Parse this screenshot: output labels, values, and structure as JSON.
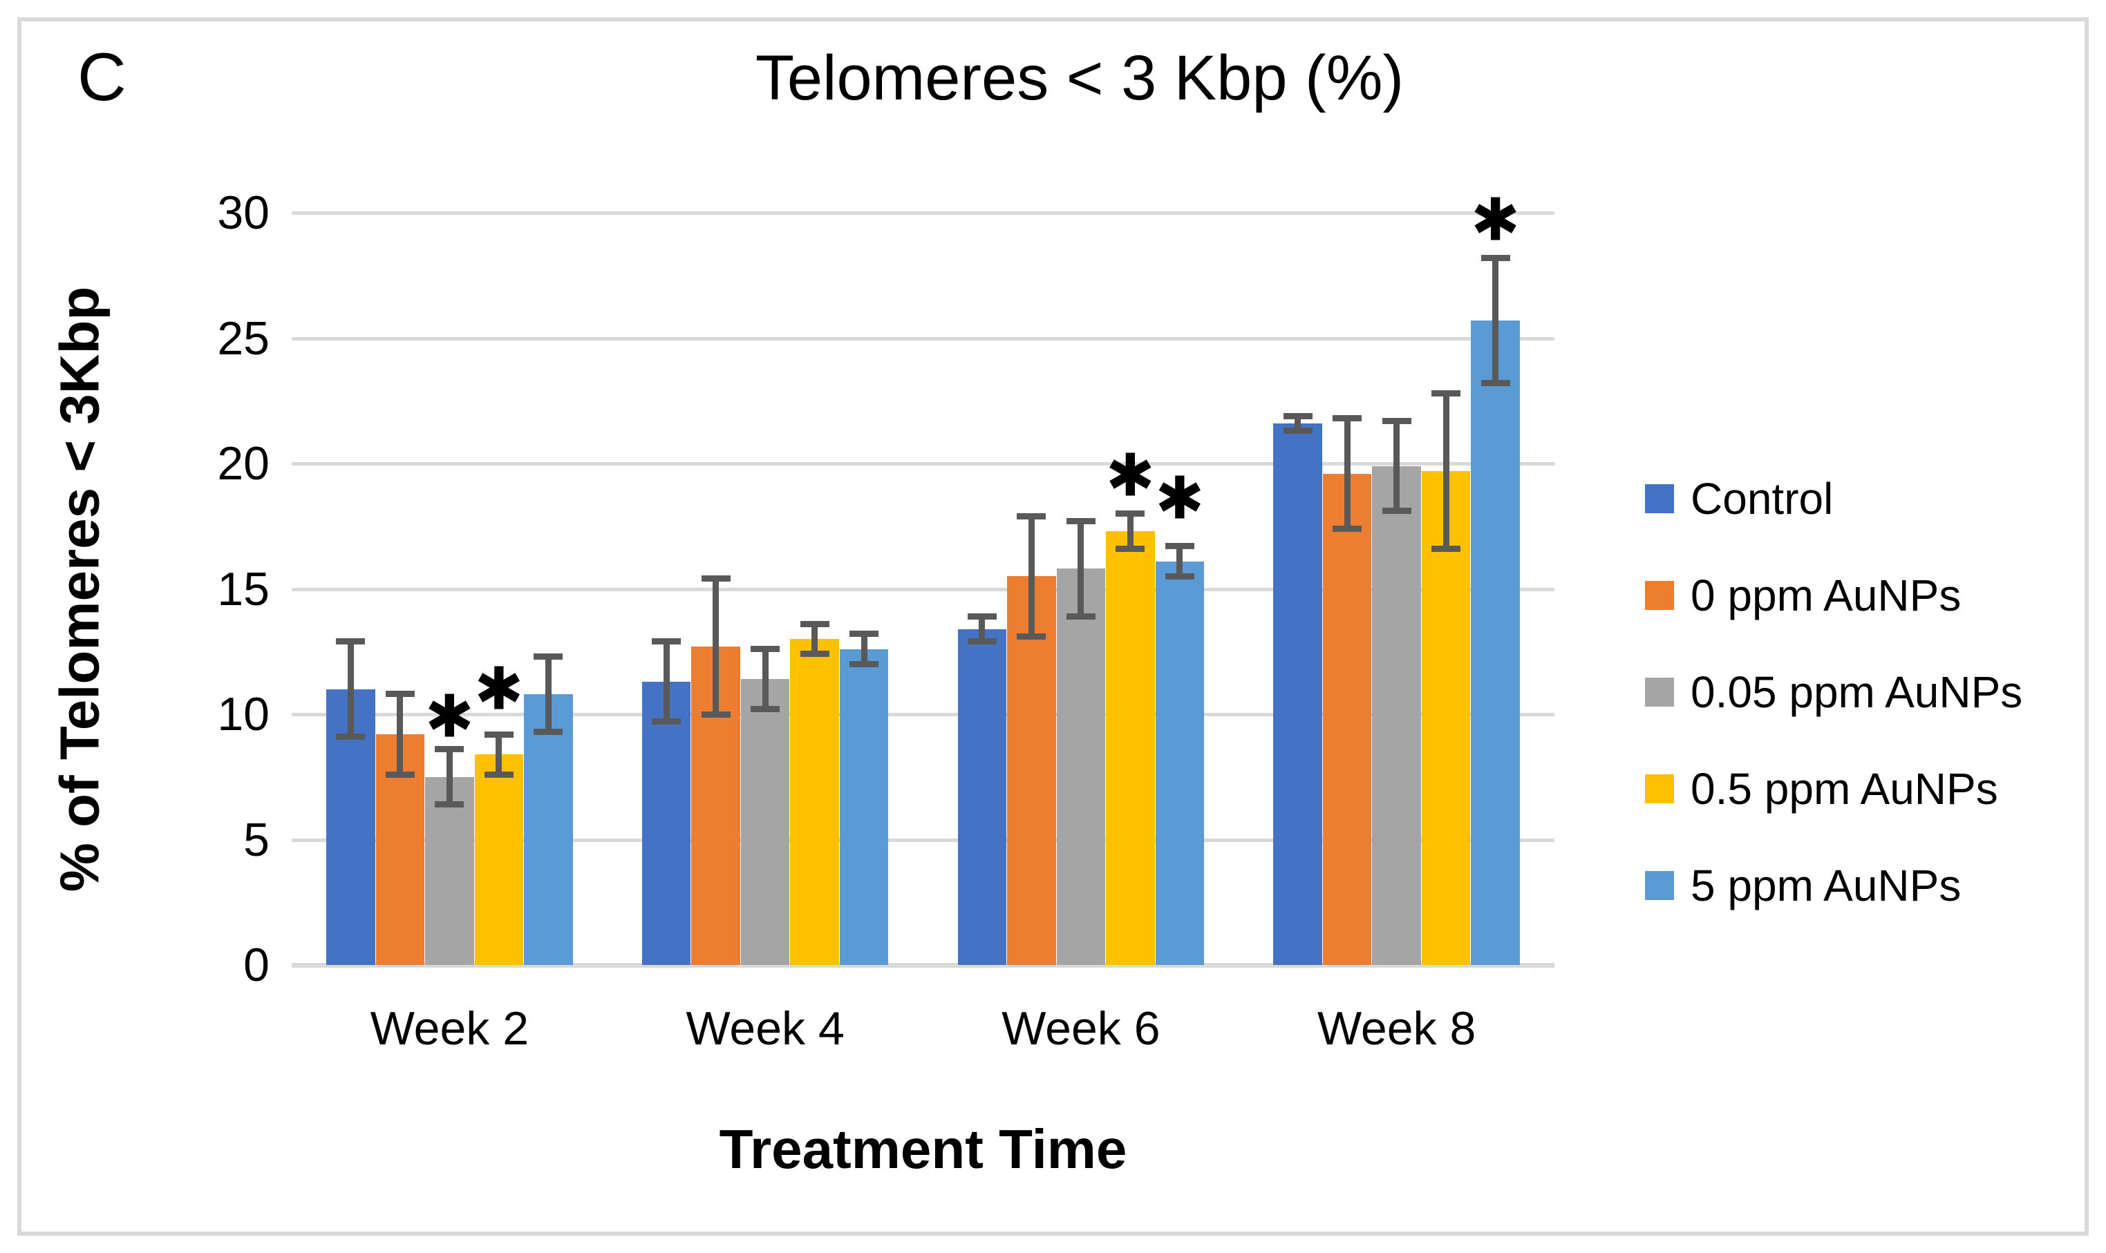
{
  "panel_label": "C",
  "chart_data": {
    "type": "bar",
    "title": "Telomeres < 3 Kbp (%)",
    "xlabel": "Treatment Time",
    "ylabel": "% of Telomeres < 3Kbp",
    "categories": [
      "Week 2",
      "Week 4",
      "Week 6",
      "Week 8"
    ],
    "series": [
      {
        "name": "Control",
        "color": "#4472C4",
        "values": [
          11.0,
          11.3,
          13.4,
          21.6
        ],
        "errors": [
          1.9,
          1.6,
          0.5,
          0.3
        ]
      },
      {
        "name": "0 ppm AuNPs",
        "color": "#ED7D31",
        "values": [
          9.2,
          12.7,
          15.5,
          19.6
        ],
        "errors": [
          1.6,
          2.7,
          2.4,
          2.2
        ]
      },
      {
        "name": "0.05 ppm AuNPs",
        "color": "#A5A5A5",
        "values": [
          7.5,
          11.4,
          15.8,
          19.9
        ],
        "errors": [
          1.1,
          1.2,
          1.9,
          1.8
        ]
      },
      {
        "name": "0.5 ppm AuNPs",
        "color": "#FFC000",
        "values": [
          8.4,
          13.0,
          17.3,
          19.7
        ],
        "errors": [
          0.8,
          0.6,
          0.7,
          3.1
        ]
      },
      {
        "name": "5 ppm AuNPs",
        "color": "#5B9BD5",
        "values": [
          10.8,
          12.6,
          16.1,
          25.7
        ],
        "errors": [
          1.5,
          0.6,
          0.6,
          2.5
        ]
      }
    ],
    "ylim": [
      0,
      30
    ],
    "y_ticks": [
      0,
      5,
      10,
      15,
      20,
      25,
      30
    ],
    "grid": true,
    "legend_position": "right",
    "significance_marker": "✱",
    "significance": [
      {
        "category": "Week 2",
        "series": "0.05 ppm AuNPs",
        "y": 9.9
      },
      {
        "category": "Week 2",
        "series": "0.5 ppm AuNPs",
        "y": 11.0
      },
      {
        "category": "Week 6",
        "series": "0.5 ppm AuNPs",
        "y": 19.5
      },
      {
        "category": "Week 6",
        "series": "5 ppm AuNPs",
        "y": 18.6
      },
      {
        "category": "Week 8",
        "series": "5 ppm AuNPs",
        "y": 29.7
      }
    ],
    "colors": {
      "error_bar": "#595959",
      "gridline": "#D9D9D9",
      "frame_border": "#D9D9D9",
      "background": "#FFFFFF"
    }
  }
}
